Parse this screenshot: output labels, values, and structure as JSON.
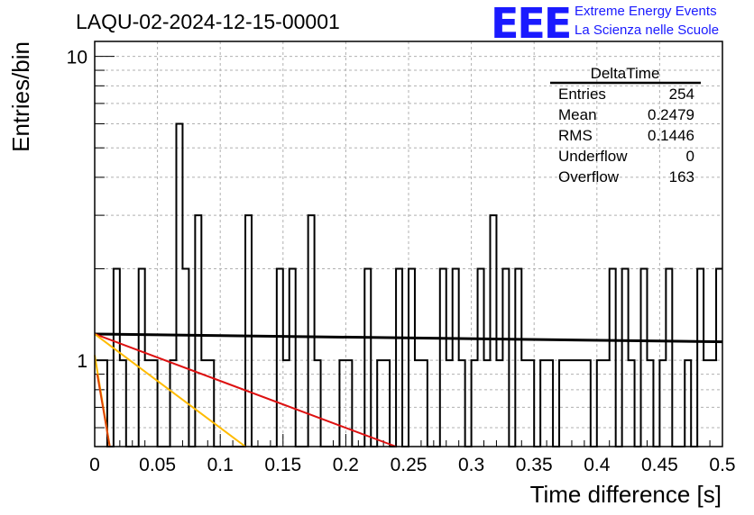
{
  "chart_data": {
    "type": "histogram",
    "title": "LAQU-02-2024-12-15-00001",
    "xlabel": "Time difference [s]",
    "ylabel": "Entries/bin",
    "xlim": [
      0,
      0.5
    ],
    "ylim": [
      0.52,
      11.2
    ],
    "yscale": "log",
    "grid": true,
    "x_ticks": [
      "0",
      "0.05",
      "0.1",
      "0.15",
      "0.2",
      "0.25",
      "0.3",
      "0.35",
      "0.4",
      "0.45",
      "0.5"
    ],
    "y_ticks": [
      {
        "value": 1,
        "label": "1"
      },
      {
        "value": 10,
        "label": "10"
      }
    ],
    "bin_width": 0.005,
    "bins": [
      {
        "x": 0.0,
        "y": 1
      },
      {
        "x": 0.005,
        "y": 1
      },
      {
        "x": 0.01,
        "y": 0
      },
      {
        "x": 0.015,
        "y": 2
      },
      {
        "x": 0.02,
        "y": 1
      },
      {
        "x": 0.025,
        "y": 0
      },
      {
        "x": 0.03,
        "y": 0
      },
      {
        "x": 0.035,
        "y": 2
      },
      {
        "x": 0.04,
        "y": 1
      },
      {
        "x": 0.045,
        "y": 1
      },
      {
        "x": 0.05,
        "y": 0
      },
      {
        "x": 0.055,
        "y": 0
      },
      {
        "x": 0.06,
        "y": 1
      },
      {
        "x": 0.065,
        "y": 6
      },
      {
        "x": 0.07,
        "y": 2
      },
      {
        "x": 0.075,
        "y": 0
      },
      {
        "x": 0.08,
        "y": 3
      },
      {
        "x": 0.085,
        "y": 1
      },
      {
        "x": 0.09,
        "y": 1
      },
      {
        "x": 0.095,
        "y": 0
      },
      {
        "x": 0.1,
        "y": 0
      },
      {
        "x": 0.105,
        "y": 0
      },
      {
        "x": 0.11,
        "y": 0
      },
      {
        "x": 0.115,
        "y": 0
      },
      {
        "x": 0.12,
        "y": 3
      },
      {
        "x": 0.125,
        "y": 0
      },
      {
        "x": 0.13,
        "y": 0
      },
      {
        "x": 0.135,
        "y": 0
      },
      {
        "x": 0.14,
        "y": 0
      },
      {
        "x": 0.145,
        "y": 2
      },
      {
        "x": 0.15,
        "y": 1
      },
      {
        "x": 0.155,
        "y": 2
      },
      {
        "x": 0.16,
        "y": 0
      },
      {
        "x": 0.165,
        "y": 0
      },
      {
        "x": 0.17,
        "y": 3
      },
      {
        "x": 0.175,
        "y": 1
      },
      {
        "x": 0.18,
        "y": 0
      },
      {
        "x": 0.185,
        "y": 0
      },
      {
        "x": 0.19,
        "y": 0
      },
      {
        "x": 0.195,
        "y": 1
      },
      {
        "x": 0.2,
        "y": 1
      },
      {
        "x": 0.205,
        "y": 0
      },
      {
        "x": 0.21,
        "y": 0
      },
      {
        "x": 0.215,
        "y": 2
      },
      {
        "x": 0.22,
        "y": 0
      },
      {
        "x": 0.225,
        "y": 1
      },
      {
        "x": 0.23,
        "y": 1
      },
      {
        "x": 0.235,
        "y": 0
      },
      {
        "x": 0.24,
        "y": 2
      },
      {
        "x": 0.245,
        "y": 0
      },
      {
        "x": 0.25,
        "y": 2
      },
      {
        "x": 0.255,
        "y": 1
      },
      {
        "x": 0.26,
        "y": 1
      },
      {
        "x": 0.265,
        "y": 0
      },
      {
        "x": 0.27,
        "y": 0
      },
      {
        "x": 0.275,
        "y": 2
      },
      {
        "x": 0.28,
        "y": 1
      },
      {
        "x": 0.285,
        "y": 2
      },
      {
        "x": 0.29,
        "y": 1
      },
      {
        "x": 0.295,
        "y": 0
      },
      {
        "x": 0.3,
        "y": 1
      },
      {
        "x": 0.305,
        "y": 2
      },
      {
        "x": 0.31,
        "y": 1
      },
      {
        "x": 0.315,
        "y": 3
      },
      {
        "x": 0.32,
        "y": 1
      },
      {
        "x": 0.325,
        "y": 2
      },
      {
        "x": 0.33,
        "y": 0
      },
      {
        "x": 0.335,
        "y": 2
      },
      {
        "x": 0.34,
        "y": 1
      },
      {
        "x": 0.345,
        "y": 1
      },
      {
        "x": 0.35,
        "y": 0
      },
      {
        "x": 0.355,
        "y": 1
      },
      {
        "x": 0.36,
        "y": 1
      },
      {
        "x": 0.365,
        "y": 0
      },
      {
        "x": 0.37,
        "y": 1
      },
      {
        "x": 0.375,
        "y": 1
      },
      {
        "x": 0.38,
        "y": 1
      },
      {
        "x": 0.385,
        "y": 1
      },
      {
        "x": 0.39,
        "y": 1
      },
      {
        "x": 0.395,
        "y": 0
      },
      {
        "x": 0.4,
        "y": 1
      },
      {
        "x": 0.405,
        "y": 1
      },
      {
        "x": 0.41,
        "y": 2
      },
      {
        "x": 0.415,
        "y": 0
      },
      {
        "x": 0.42,
        "y": 2
      },
      {
        "x": 0.425,
        "y": 1
      },
      {
        "x": 0.43,
        "y": 0
      },
      {
        "x": 0.435,
        "y": 2
      },
      {
        "x": 0.44,
        "y": 1
      },
      {
        "x": 0.445,
        "y": 0
      },
      {
        "x": 0.45,
        "y": 1
      },
      {
        "x": 0.455,
        "y": 2
      },
      {
        "x": 0.46,
        "y": 0
      },
      {
        "x": 0.465,
        "y": 0
      },
      {
        "x": 0.47,
        "y": 1
      },
      {
        "x": 0.475,
        "y": 0
      },
      {
        "x": 0.48,
        "y": 2
      },
      {
        "x": 0.485,
        "y": 1
      },
      {
        "x": 0.49,
        "y": 1
      },
      {
        "x": 0.495,
        "y": 2
      }
    ],
    "fit_lines": [
      {
        "color": "#000000",
        "x0": 0.0,
        "y0": 1.22,
        "x1": 0.5,
        "y1": 1.15,
        "width": 3
      },
      {
        "color": "#dd1111",
        "x0": 0.0,
        "y0": 1.22,
        "x1": 0.24,
        "y1": 0.52,
        "width": 2
      },
      {
        "color": "#ffbb00",
        "x0": 0.0,
        "y0": 1.22,
        "x1": 0.12,
        "y1": 0.52,
        "width": 2
      },
      {
        "color": "#ffbb00",
        "x0": 0.0,
        "y0": 1.04,
        "x1": 0.012,
        "y1": 0.52,
        "width": 2
      },
      {
        "color": "#dd4400",
        "x0": 0.002,
        "y0": 0.9,
        "x1": 0.012,
        "y1": 0.52,
        "width": 2
      }
    ]
  },
  "stats_box": {
    "name": "DeltaTime",
    "rows": [
      {
        "label": "Entries",
        "value": "254"
      },
      {
        "label": "Mean",
        "value": "0.2479"
      },
      {
        "label": "RMS",
        "value": "0.1446"
      },
      {
        "label": "Underflow",
        "value": "0"
      },
      {
        "label": "Overflow",
        "value": "163"
      }
    ]
  },
  "logo": {
    "mark": "EEE",
    "line1": "Extreme Energy Events",
    "line2": "La Scienza nelle Scuole",
    "color": "#1a1aff"
  }
}
